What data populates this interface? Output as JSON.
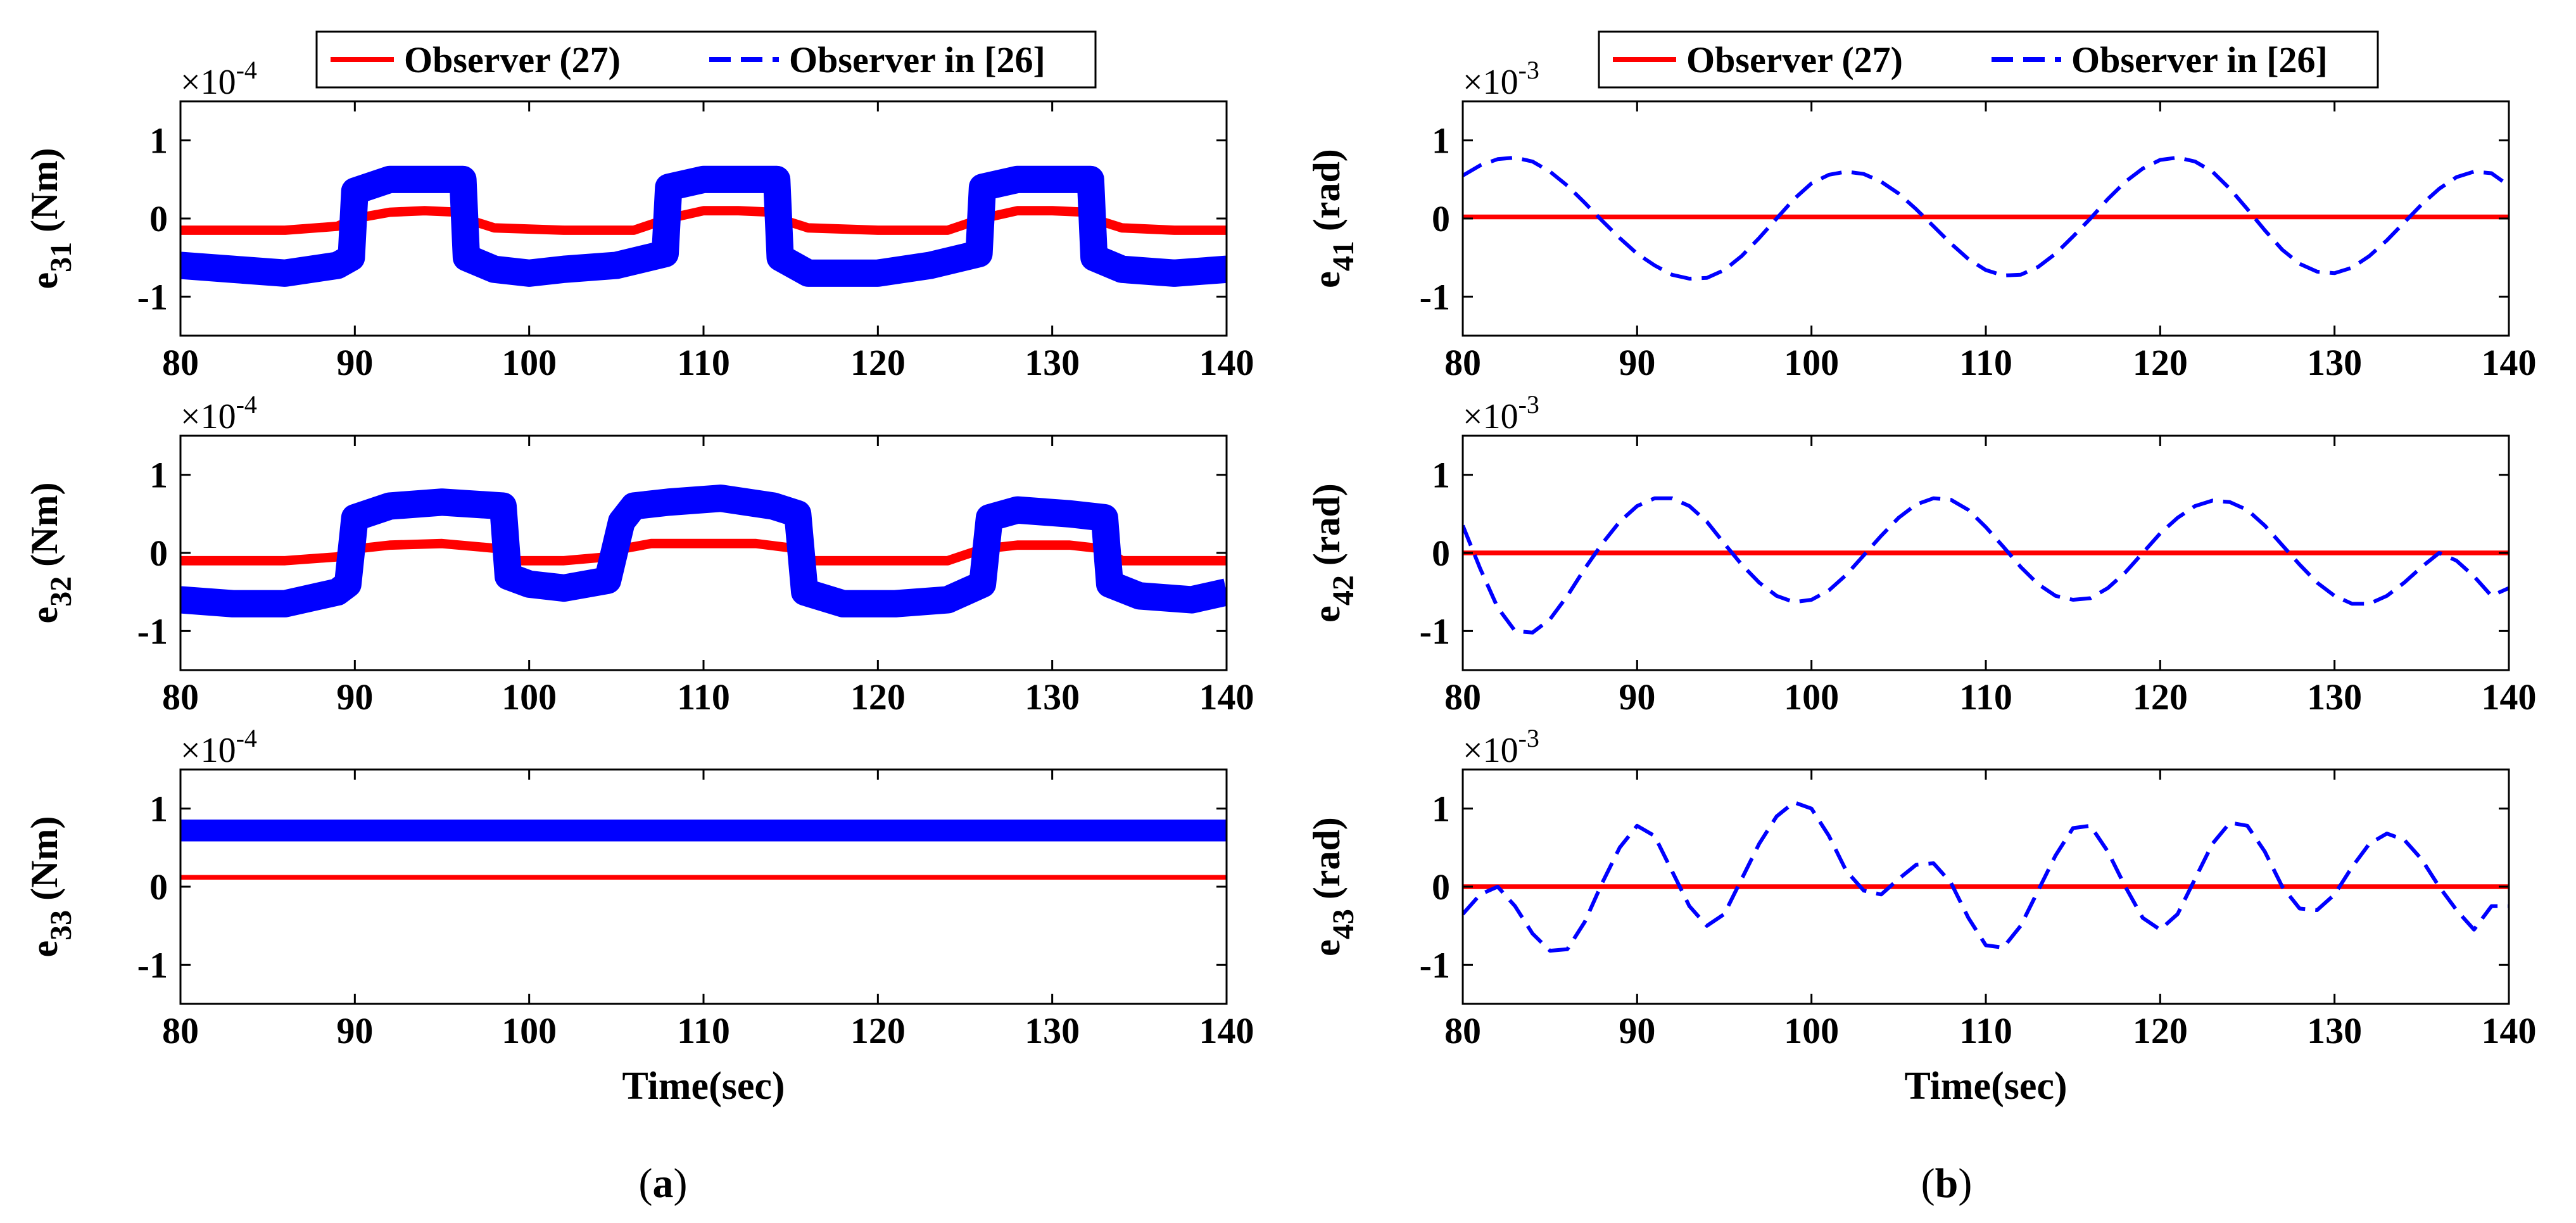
{
  "figure": {
    "panel_labels": [
      {
        "paren_open": "(",
        "letter": "a",
        "paren_close": ")"
      },
      {
        "paren_open": "(",
        "letter": "b",
        "paren_close": ")"
      }
    ]
  },
  "colors": {
    "observer_27": "#ff0000",
    "observer_26": "#0000ff"
  },
  "chart_data": [
    {
      "type": "line",
      "id": "e31",
      "column": 0,
      "row": 0,
      "ylabel_base": "e",
      "ylabel_sub": "31",
      "ylabel_unit": "(Nm)",
      "exponent_base": "×10",
      "exponent_power": "-4",
      "xlim": [
        80,
        140
      ],
      "ylim": [
        -1.5,
        1.5
      ],
      "xticks": [
        "80",
        "90",
        "100",
        "110",
        "120",
        "130",
        "140"
      ],
      "yticks": [
        "-1",
        "0",
        "1"
      ],
      "xlabel": "",
      "legend": [
        "Observer (27)",
        "Observer in [26]"
      ],
      "series": [
        {
          "name": "Observer (27)",
          "style": "solid",
          "width": 0.12,
          "x": [
            80,
            86,
            89,
            90,
            92,
            94,
            96,
            96.3,
            98,
            102,
            106,
            108,
            110,
            112,
            114,
            114.3,
            116,
            120,
            124,
            126,
            128,
            130,
            132,
            132.3,
            134,
            137,
            140
          ],
          "y": [
            -0.15,
            -0.15,
            -0.1,
            0.0,
            0.08,
            0.1,
            0.08,
            0.0,
            -0.12,
            -0.15,
            -0.15,
            0.0,
            0.1,
            0.1,
            0.08,
            0.0,
            -0.12,
            -0.15,
            -0.15,
            0.0,
            0.1,
            0.1,
            0.08,
            0.0,
            -0.12,
            -0.15,
            -0.15
          ]
        },
        {
          "name": "Observer in [26]",
          "style": "solid",
          "width": 0.35,
          "x": [
            80,
            83,
            86,
            89,
            89.8,
            90,
            92,
            94,
            96.2,
            96.4,
            98,
            100,
            102,
            105,
            107.8,
            108,
            110,
            112,
            114.2,
            114.4,
            116,
            118,
            120,
            123,
            125.8,
            126,
            128,
            130,
            132.2,
            132.4,
            134,
            137,
            140
          ],
          "y": [
            -0.6,
            -0.65,
            -0.7,
            -0.6,
            -0.5,
            0.35,
            0.5,
            0.5,
            0.5,
            -0.5,
            -0.65,
            -0.7,
            -0.65,
            -0.6,
            -0.45,
            0.4,
            0.5,
            0.5,
            0.5,
            -0.5,
            -0.7,
            -0.7,
            -0.7,
            -0.6,
            -0.45,
            0.4,
            0.5,
            0.5,
            0.5,
            -0.5,
            -0.65,
            -0.7,
            -0.65
          ]
        }
      ]
    },
    {
      "type": "line",
      "id": "e32",
      "column": 0,
      "row": 1,
      "ylabel_base": "e",
      "ylabel_sub": "32",
      "ylabel_unit": "(Nm)",
      "exponent_base": "×10",
      "exponent_power": "-4",
      "xlim": [
        80,
        140
      ],
      "ylim": [
        -1.5,
        1.5
      ],
      "xticks": [
        "80",
        "90",
        "100",
        "110",
        "120",
        "130",
        "140"
      ],
      "yticks": [
        "-1",
        "0",
        "1"
      ],
      "xlabel": "",
      "legend": [],
      "series": [
        {
          "name": "Observer (27)",
          "style": "solid",
          "width": 0.12,
          "x": [
            80,
            86,
            89,
            90,
            92,
            95,
            98.5,
            99,
            102,
            104.5,
            105.3,
            107,
            110,
            113,
            115.5,
            116,
            120,
            124,
            126,
            128,
            131,
            133,
            134,
            137,
            140
          ],
          "y": [
            -0.1,
            -0.1,
            -0.05,
            0.05,
            0.1,
            0.12,
            0.05,
            -0.1,
            -0.1,
            -0.05,
            0.05,
            0.12,
            0.12,
            0.12,
            0.05,
            -0.1,
            -0.1,
            -0.1,
            0.05,
            0.1,
            0.1,
            0.05,
            -0.1,
            -0.1,
            -0.1
          ]
        },
        {
          "name": "Observer in [26]",
          "style": "solid",
          "width": 0.35,
          "x": [
            80,
            83,
            86,
            89,
            89.6,
            90,
            92,
            95,
            98.5,
            98.8,
            100,
            102,
            104.5,
            105.3,
            106,
            108,
            111,
            114,
            115.4,
            115.8,
            118,
            121,
            124,
            126,
            126.4,
            128,
            131,
            133,
            133.3,
            135,
            138,
            140
          ],
          "y": [
            -0.6,
            -0.65,
            -0.65,
            -0.5,
            -0.4,
            0.45,
            0.6,
            0.65,
            0.6,
            -0.3,
            -0.4,
            -0.45,
            -0.35,
            0.4,
            0.6,
            0.65,
            0.7,
            0.6,
            0.5,
            -0.5,
            -0.65,
            -0.65,
            -0.6,
            -0.4,
            0.45,
            0.55,
            0.5,
            0.45,
            -0.4,
            -0.55,
            -0.6,
            -0.5
          ]
        }
      ]
    },
    {
      "type": "line",
      "id": "e33",
      "column": 0,
      "row": 2,
      "ylabel_base": "e",
      "ylabel_sub": "33",
      "ylabel_unit": "(Nm)",
      "exponent_base": "×10",
      "exponent_power": "-4",
      "xlim": [
        80,
        140
      ],
      "ylim": [
        -1.5,
        1.5
      ],
      "xticks": [
        "80",
        "90",
        "100",
        "110",
        "120",
        "130",
        "140"
      ],
      "yticks": [
        "-1",
        "0",
        "1"
      ],
      "xlabel": "Time(sec)",
      "legend": [],
      "series": [
        {
          "name": "Observer (27)",
          "style": "solid",
          "width": 0.06,
          "x": [
            80,
            140
          ],
          "y": [
            0.12,
            0.12
          ]
        },
        {
          "name": "Observer in [26]",
          "style": "solid",
          "width": 0.28,
          "x": [
            80,
            140
          ],
          "y": [
            0.72,
            0.72
          ]
        }
      ]
    },
    {
      "type": "line",
      "id": "e41",
      "column": 1,
      "row": 0,
      "ylabel_base": "e",
      "ylabel_sub": "41",
      "ylabel_unit": "(rad)",
      "exponent_base": "×10",
      "exponent_power": "-3",
      "xlim": [
        80,
        140
      ],
      "ylim": [
        -1.5,
        1.5
      ],
      "xticks": [
        "80",
        "90",
        "100",
        "110",
        "120",
        "130",
        "140"
      ],
      "yticks": [
        "-1",
        "0",
        "1"
      ],
      "xlabel": "",
      "legend": [
        "Observer (27)",
        "Observer in [26]"
      ],
      "series": [
        {
          "name": "Observer (27)",
          "style": "solid",
          "width": 0.06,
          "x": [
            80,
            140
          ],
          "y": [
            0.02,
            0.02
          ]
        },
        {
          "name": "Observer in [26]",
          "style": "dashed",
          "width": 0.04,
          "x": [
            80,
            81,
            82,
            83,
            84,
            85,
            86,
            87,
            88,
            89,
            90,
            91,
            92,
            93,
            94,
            95,
            96,
            97,
            98,
            99,
            100,
            101,
            102,
            103,
            104,
            105,
            106,
            107,
            108,
            109,
            110,
            111,
            112,
            113,
            114,
            115,
            116,
            117,
            118,
            119,
            120,
            121,
            122,
            123,
            124,
            125,
            126,
            127,
            128,
            129,
            130,
            131,
            132,
            133,
            134,
            135,
            136,
            137,
            138,
            139,
            140
          ],
          "y": [
            0.55,
            0.68,
            0.76,
            0.78,
            0.73,
            0.6,
            0.42,
            0.2,
            -0.03,
            -0.25,
            -0.45,
            -0.6,
            -0.72,
            -0.77,
            -0.76,
            -0.66,
            -0.48,
            -0.25,
            0.0,
            0.25,
            0.45,
            0.56,
            0.6,
            0.57,
            0.47,
            0.32,
            0.12,
            -0.1,
            -0.32,
            -0.52,
            -0.66,
            -0.73,
            -0.72,
            -0.62,
            -0.45,
            -0.23,
            0.0,
            0.25,
            0.47,
            0.64,
            0.75,
            0.78,
            0.73,
            0.6,
            0.38,
            0.12,
            -0.15,
            -0.4,
            -0.58,
            -0.68,
            -0.7,
            -0.63,
            -0.48,
            -0.28,
            -0.05,
            0.18,
            0.38,
            0.53,
            0.6,
            0.58,
            0.42
          ]
        }
      ]
    },
    {
      "type": "line",
      "id": "e42",
      "column": 1,
      "row": 1,
      "ylabel_base": "e",
      "ylabel_sub": "42",
      "ylabel_unit": "(rad)",
      "exponent_base": "×10",
      "exponent_power": "-3",
      "xlim": [
        80,
        140
      ],
      "ylim": [
        -1.5,
        1.5
      ],
      "xticks": [
        "80",
        "90",
        "100",
        "110",
        "120",
        "130",
        "140"
      ],
      "yticks": [
        "-1",
        "0",
        "1"
      ],
      "xlabel": "",
      "legend": [],
      "series": [
        {
          "name": "Observer (27)",
          "style": "solid",
          "width": 0.06,
          "x": [
            80,
            140
          ],
          "y": [
            0.0,
            0.0
          ]
        },
        {
          "name": "Observer in [26]",
          "style": "dashed",
          "width": 0.04,
          "x": [
            80,
            81,
            82,
            83,
            84,
            85,
            86,
            87,
            88,
            89,
            90,
            91,
            92,
            93,
            94,
            95,
            96,
            97,
            98,
            99,
            100,
            101,
            102,
            103,
            104,
            105,
            106,
            107,
            108,
            109,
            110,
            111,
            112,
            113,
            114,
            115,
            116,
            117,
            118,
            119,
            120,
            121,
            122,
            123,
            124,
            125,
            126,
            127,
            128,
            129,
            130,
            131,
            132,
            133,
            134,
            135,
            136,
            137,
            138,
            139,
            140
          ],
          "y": [
            0.35,
            -0.2,
            -0.7,
            -1.0,
            -1.02,
            -0.85,
            -0.55,
            -0.2,
            0.12,
            0.4,
            0.6,
            0.7,
            0.7,
            0.6,
            0.4,
            0.12,
            -0.15,
            -0.38,
            -0.55,
            -0.63,
            -0.6,
            -0.48,
            -0.28,
            -0.03,
            0.22,
            0.45,
            0.62,
            0.7,
            0.68,
            0.55,
            0.33,
            0.08,
            -0.18,
            -0.4,
            -0.55,
            -0.6,
            -0.58,
            -0.45,
            -0.25,
            0.0,
            0.25,
            0.45,
            0.6,
            0.67,
            0.65,
            0.55,
            0.35,
            0.1,
            -0.15,
            -0.38,
            -0.55,
            -0.65,
            -0.65,
            -0.55,
            -0.38,
            -0.18,
            0.0,
            -0.1,
            -0.3,
            -0.55,
            -0.45
          ]
        }
      ]
    },
    {
      "type": "line",
      "id": "e43",
      "column": 1,
      "row": 2,
      "ylabel_base": "e",
      "ylabel_sub": "43",
      "ylabel_unit": "(rad)",
      "exponent_base": "×10",
      "exponent_power": "-3",
      "xlim": [
        80,
        140
      ],
      "ylim": [
        -1.5,
        1.5
      ],
      "xticks": [
        "80",
        "90",
        "100",
        "110",
        "120",
        "130",
        "140"
      ],
      "yticks": [
        "-1",
        "0",
        "1"
      ],
      "xlabel": "Time(sec)",
      "legend": [],
      "series": [
        {
          "name": "Observer (27)",
          "style": "solid",
          "width": 0.06,
          "x": [
            80,
            140
          ],
          "y": [
            0.0,
            0.0
          ]
        },
        {
          "name": "Observer in [26]",
          "style": "dashed",
          "width": 0.04,
          "x": [
            80,
            81,
            82,
            83,
            84,
            85,
            86,
            87,
            88,
            89,
            90,
            91,
            92,
            93,
            94,
            95,
            96,
            97,
            98,
            99,
            100,
            101,
            102,
            103,
            104,
            105,
            106,
            107,
            108,
            109,
            110,
            111,
            112,
            113,
            114,
            115,
            116,
            117,
            118,
            119,
            120,
            121,
            122,
            123,
            124,
            125,
            126,
            127,
            128,
            129,
            130,
            131,
            132,
            133,
            134,
            135,
            136,
            137,
            138,
            139,
            140
          ],
          "y": [
            -0.35,
            -0.1,
            0.0,
            -0.25,
            -0.6,
            -0.82,
            -0.8,
            -0.45,
            0.05,
            0.5,
            0.78,
            0.65,
            0.2,
            -0.25,
            -0.5,
            -0.35,
            0.1,
            0.55,
            0.9,
            1.08,
            1.0,
            0.65,
            0.2,
            -0.05,
            -0.1,
            0.1,
            0.28,
            0.3,
            0.05,
            -0.4,
            -0.75,
            -0.78,
            -0.5,
            -0.05,
            0.4,
            0.75,
            0.78,
            0.45,
            0.0,
            -0.4,
            -0.55,
            -0.35,
            0.1,
            0.55,
            0.82,
            0.78,
            0.45,
            0.0,
            -0.28,
            -0.3,
            -0.1,
            0.25,
            0.55,
            0.68,
            0.6,
            0.35,
            0.0,
            -0.3,
            -0.55,
            -0.25,
            -0.25
          ]
        }
      ]
    }
  ]
}
